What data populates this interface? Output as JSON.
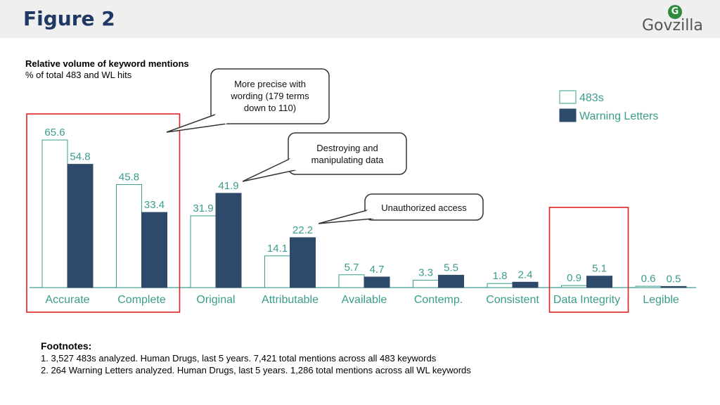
{
  "header": {
    "title": "Figure 2",
    "logo_text": "Govzilla",
    "logo_icon": "globe-icon"
  },
  "colors": {
    "accent": "#1f3864",
    "series_483": "#ffffff",
    "series_wl": "#2e4a6b",
    "label_text": "#3a9c8c",
    "highlight_box": "#e02020",
    "logo_green": "#2e8b3e"
  },
  "chart_data": {
    "type": "bar",
    "title": "Relative volume of keyword mentions",
    "subtitle": "% of total 483 and WL hits",
    "categories": [
      "Accurate",
      "Complete",
      "Original",
      "Attributable",
      "Available",
      "Contemp.",
      "Consistent",
      "Data Integrity",
      "Legible"
    ],
    "series": [
      {
        "name": "483s",
        "values": [
          65.6,
          45.8,
          31.9,
          14.1,
          5.7,
          3.3,
          1.8,
          0.9,
          0.6
        ]
      },
      {
        "name": "Warning Letters",
        "values": [
          54.8,
          33.4,
          41.9,
          22.2,
          4.7,
          5.5,
          2.4,
          5.1,
          0.5
        ]
      }
    ],
    "value_labels": [
      [
        "65.6",
        "45.8",
        "31.9",
        "14.1",
        "5.7",
        "3.3",
        "1.8",
        "0.9",
        "0.6"
      ],
      [
        "54.8",
        "33.4",
        "41.9",
        "22.2",
        "4.7",
        "5.5",
        "2.4",
        "5.1",
        "0.5"
      ]
    ],
    "ylim": [
      0,
      70
    ],
    "grid": false,
    "legend": "top-right",
    "annotations": [
      {
        "text_lines": [
          "More precise with",
          "wording (179 terms",
          "down to 110)"
        ],
        "target_categories": [
          "Accurate",
          "Complete"
        ]
      },
      {
        "text_lines": [
          "Destroying and",
          "manipulating data"
        ],
        "target_category": "Original"
      },
      {
        "text_lines": [
          "Unauthorized access"
        ],
        "target_category": "Attributable"
      }
    ],
    "highlight_groups": [
      [
        "Accurate",
        "Complete"
      ],
      [
        "Data Integrity"
      ]
    ]
  },
  "footnotes": {
    "heading": "Footnotes:",
    "items": [
      "1. 3,527 483s analyzed. Human Drugs, last 5 years. 7,421 total mentions across all 483 keywords",
      "2. 264 Warning Letters analyzed. Human Drugs, last 5 years. 1,286 total mentions across all WL keywords"
    ]
  }
}
